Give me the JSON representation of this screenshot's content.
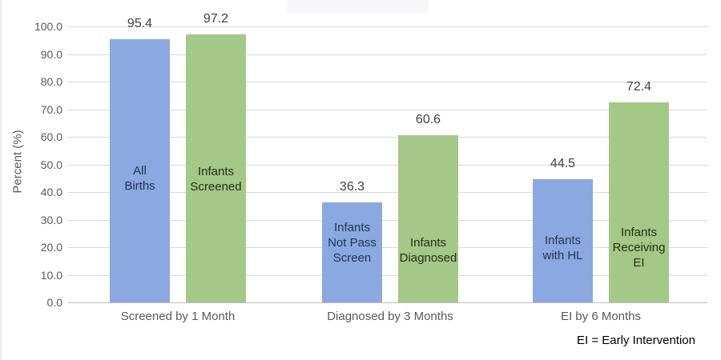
{
  "chart_data": {
    "type": "bar",
    "title": "",
    "ylabel": "Percent (%)",
    "xlabel": "",
    "ylim": [
      0,
      100
    ],
    "grid": "horizontal",
    "legend": "none",
    "footnote": "EI = Early Intervention",
    "colors": {
      "blue_bar": "#8ca8e0",
      "green_bar": "#a4c887",
      "blue_bar_text": "#1f3355",
      "green_bar_text": "#223012",
      "value_label_text": "#3f3f3f",
      "axis_text": "#595959",
      "gridline": "#d9d9d9",
      "axis_line": "#bfbfbf"
    },
    "yticks": [
      {
        "value": 0,
        "label": "0.0"
      },
      {
        "value": 10,
        "label": "10.0"
      },
      {
        "value": 20,
        "label": "20.0"
      },
      {
        "value": 30,
        "label": "30.0"
      },
      {
        "value": 40,
        "label": "40.0"
      },
      {
        "value": 50,
        "label": "50.0"
      },
      {
        "value": 60,
        "label": "60.0"
      },
      {
        "value": 70,
        "label": "70.0"
      },
      {
        "value": 80,
        "label": "80.0"
      },
      {
        "value": 90,
        "label": "90.0"
      },
      {
        "value": 100,
        "label": "100.0"
      }
    ],
    "groups": [
      {
        "label": "Screened by 1 Month",
        "bars": [
          {
            "color": "blue",
            "name_lines": [
              "All",
              "Births"
            ],
            "value": 95.4,
            "value_label": "95.4"
          },
          {
            "color": "green",
            "name_lines": [
              "Infants",
              "Screened"
            ],
            "value": 97.2,
            "value_label": "97.2"
          }
        ]
      },
      {
        "label": "Diagnosed by 3 Months",
        "bars": [
          {
            "color": "blue",
            "name_lines": [
              "Infants",
              "Not Pass",
              "Screen"
            ],
            "value": 36.3,
            "value_label": "36.3"
          },
          {
            "color": "green",
            "name_lines": [
              "Infants",
              "Diagnosed"
            ],
            "value": 60.6,
            "value_label": "60.6"
          }
        ]
      },
      {
        "label": "EI by 6 Months",
        "bars": [
          {
            "color": "blue",
            "name_lines": [
              "Infants",
              "with HL"
            ],
            "value": 44.5,
            "value_label": "44.5"
          },
          {
            "color": "green",
            "name_lines": [
              "Infants",
              "Receiving",
              "EI"
            ],
            "value": 72.4,
            "value_label": "72.4"
          }
        ]
      }
    ]
  }
}
